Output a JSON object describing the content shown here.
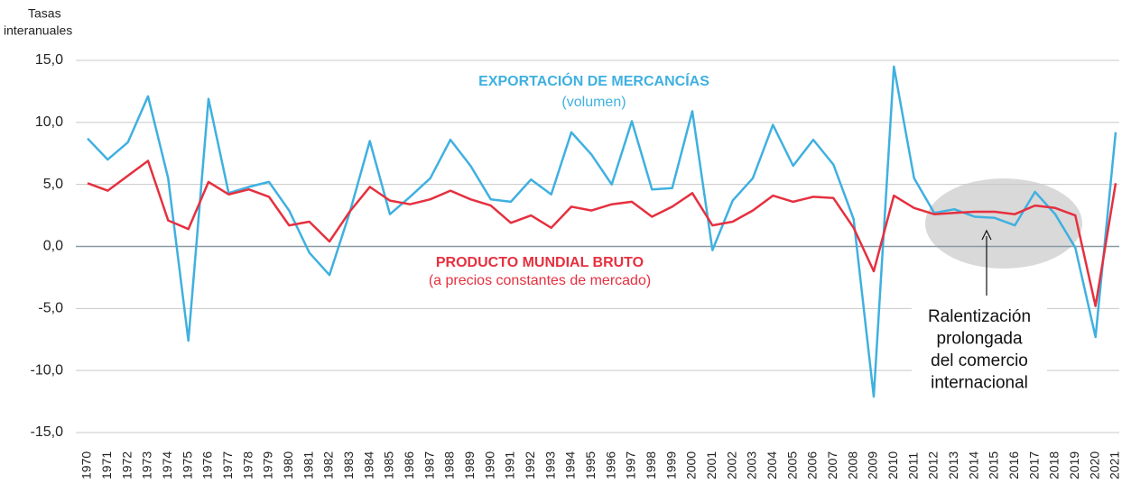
{
  "chart_data": {
    "type": "line",
    "y_label": [
      "Tasas",
      "interanuales"
    ],
    "categories": [
      "1970",
      "1971",
      "1972",
      "1973",
      "1974",
      "1975",
      "1976",
      "1977",
      "1978",
      "1979",
      "1980",
      "1981",
      "1982",
      "1983",
      "1984",
      "1985",
      "1986",
      "1987",
      "1988",
      "1989",
      "1990",
      "1991",
      "1992",
      "1993",
      "1994",
      "1995",
      "1996",
      "1997",
      "1998",
      "1999",
      "2000",
      "2001",
      "2002",
      "2003",
      "2004",
      "2005",
      "2006",
      "2007",
      "2008",
      "2009",
      "2010",
      "2011",
      "2012",
      "2013",
      "2014",
      "2015",
      "2016",
      "2017",
      "2018",
      "2019",
      "2020",
      "2021"
    ],
    "series": [
      {
        "name": "EXPORTACIÓN DE MERCANCÍAS",
        "note": "(volumen)",
        "color": "#3fb0e0",
        "values": [
          8.7,
          7.0,
          8.4,
          12.1,
          5.5,
          -7.6,
          11.9,
          4.3,
          4.8,
          5.2,
          2.9,
          -0.5,
          -2.3,
          2.7,
          8.5,
          2.6,
          4.0,
          5.5,
          8.6,
          6.5,
          3.8,
          3.6,
          5.4,
          4.2,
          9.2,
          7.4,
          5.0,
          10.1,
          4.6,
          4.7,
          10.9,
          -0.3,
          3.7,
          5.5,
          9.8,
          6.5,
          8.6,
          6.6,
          2.2,
          -12.1,
          14.5,
          5.5,
          2.7,
          3.0,
          2.4,
          2.3,
          1.7,
          4.4,
          2.6,
          -0.1,
          -7.3,
          9.2
        ]
      },
      {
        "name": "PRODUCTO MUNDIAL BRUTO",
        "note": "(a precios constantes de mercado)",
        "color": "#e5303f",
        "values": [
          5.1,
          4.5,
          5.7,
          6.9,
          2.1,
          1.4,
          5.2,
          4.2,
          4.6,
          4.0,
          1.7,
          2.0,
          0.4,
          2.8,
          4.8,
          3.7,
          3.4,
          3.8,
          4.5,
          3.8,
          3.3,
          1.9,
          2.5,
          1.5,
          3.2,
          2.9,
          3.4,
          3.6,
          2.4,
          3.2,
          4.3,
          1.7,
          2.0,
          2.9,
          4.1,
          3.6,
          4.0,
          3.9,
          1.5,
          -2.0,
          4.1,
          3.1,
          2.6,
          2.7,
          2.8,
          2.8,
          2.6,
          3.3,
          3.1,
          2.5,
          -4.8,
          5.1
        ]
      }
    ],
    "annotation": [
      "Ralentización",
      "prolongada",
      "del comercio",
      "internacional"
    ],
    "ylim": [
      -15,
      15
    ],
    "yticks": [
      {
        "value": 15,
        "label": "15,0"
      },
      {
        "value": 10,
        "label": "10,0"
      },
      {
        "value": 5,
        "label": "5,0"
      },
      {
        "value": 0,
        "label": "0,0"
      },
      {
        "value": -5,
        "label": "-5,0"
      },
      {
        "value": -10,
        "label": "-10,0"
      },
      {
        "value": -15,
        "label": "-15,0"
      }
    ],
    "grid": true
  }
}
